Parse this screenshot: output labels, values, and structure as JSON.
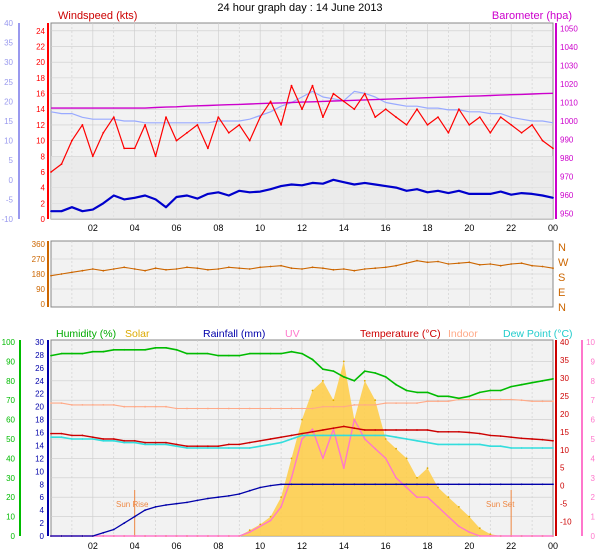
{
  "title": "24 hour graph day : 14 June 2013",
  "colors": {
    "wind_gust": "#ff0000",
    "wind_avg": "#0000cc",
    "wind_axis": "#ff0000",
    "wind_left_axis": "#9999ee",
    "barometer": "#cc00cc",
    "barometer_light": "#99aaff",
    "wind_dir": "#cc6600",
    "humidity": "#00bb00",
    "solar": "#ffcc44",
    "rainfall": "#0000aa",
    "uv": "#ff77cc",
    "temperature": "#cc0000",
    "indoor": "#ffaa88",
    "dewpoint": "#33dddd",
    "grid": "#cccccc",
    "panel_bg": "#f2f2f2"
  },
  "chart_data": [
    {
      "type": "line",
      "name": "wind-barometer",
      "title": "",
      "left_title": "Windspeed (kts)",
      "right_title": "Barometer (hpa)",
      "x_ticks": [
        "02",
        "04",
        "06",
        "08",
        "10",
        "12",
        "14",
        "16",
        "18",
        "20",
        "22",
        "00"
      ],
      "left_outer_ticks": [
        40,
        35,
        30,
        25,
        20,
        15,
        10,
        5,
        0,
        -5,
        -10
      ],
      "left_inner_ticks": [
        24,
        22,
        20,
        18,
        16,
        14,
        12,
        10,
        8,
        6,
        4,
        2,
        0
      ],
      "right_ticks": [
        1050,
        1040,
        1030,
        1020,
        1010,
        1000,
        990,
        980,
        970,
        960,
        950
      ],
      "ylim_wind": [
        0,
        25
      ],
      "ylim_baro": [
        947,
        1053
      ],
      "x_hours": [
        0,
        0.5,
        1,
        1.5,
        2,
        2.5,
        3,
        3.5,
        4,
        4.5,
        5,
        5.5,
        6,
        6.5,
        7,
        7.5,
        8,
        8.5,
        9,
        9.5,
        10,
        10.5,
        11,
        11.5,
        12,
        12.5,
        13,
        13.5,
        14,
        14.5,
        15,
        15.5,
        16,
        16.5,
        17,
        17.5,
        18,
        18.5,
        19,
        19.5,
        20,
        20.5,
        21,
        21.5,
        22,
        22.5,
        23,
        23.5,
        24
      ],
      "series": [
        {
          "name": "Wind gust",
          "values": [
            6,
            7,
            10,
            12,
            8,
            11,
            13,
            9,
            9,
            12,
            8,
            13,
            10,
            11,
            12,
            9,
            13,
            11,
            12,
            10,
            13,
            15,
            12,
            17,
            14,
            17,
            13,
            16,
            15,
            14,
            16,
            13,
            14,
            13,
            12,
            14,
            12,
            13,
            11,
            14,
            12,
            13,
            11,
            13,
            12,
            11,
            12,
            10,
            9
          ]
        },
        {
          "name": "Wind avg",
          "values": [
            1,
            1,
            1.5,
            1,
            1.2,
            2,
            3,
            2.5,
            2.7,
            3,
            2.5,
            1.5,
            2.8,
            3,
            2.6,
            3.2,
            3.4,
            3,
            3.6,
            3.4,
            3.5,
            3.8,
            4.2,
            4.4,
            4.3,
            4.6,
            4.5,
            5,
            4.7,
            4.4,
            4.6,
            4.4,
            4.2,
            4,
            3.6,
            3.8,
            3.4,
            3.6,
            3.3,
            3.6,
            3.2,
            3.2,
            3.2,
            3.5,
            3.1,
            3.3,
            3.2,
            3,
            2.7
          ]
        },
        {
          "name": "Barometer",
          "values": [
            1007,
            1007,
            1007,
            1007,
            1007,
            1007,
            1007,
            1007,
            1007,
            1007,
            1007.3,
            1007.5,
            1007.7,
            1008,
            1008.2,
            1008.4,
            1008.6,
            1008.8,
            1009,
            1009.2,
            1009.4,
            1009.6,
            1009.8,
            1010,
            1010.2,
            1010.4,
            1010.6,
            1010.8,
            1011,
            1011.2,
            1011.4,
            1011.6,
            1011.8,
            1012,
            1012.2,
            1012.4,
            1012.6,
            1012.8,
            1013,
            1013.2,
            1013.4,
            1013.6,
            1013.8,
            1014,
            1014.2,
            1014.4,
            1014.6,
            1014.8,
            1015
          ]
        },
        {
          "name": "Barometer light",
          "values": [
            1005,
            1004,
            1004,
            1002,
            1001,
            1001,
            1001,
            1000,
            1000,
            999,
            999,
            999,
            999,
            999,
            999,
            999,
            1000,
            1000,
            1000,
            1001,
            1003,
            1005,
            1008,
            1010,
            1013,
            1016,
            1013,
            1012,
            1011,
            1016,
            1015,
            1013,
            1010,
            1009,
            1008,
            1008,
            1007,
            1007,
            1006,
            1006,
            1005,
            1005,
            1004,
            1004,
            1002,
            1001,
            1000,
            1000,
            999
          ]
        }
      ]
    },
    {
      "type": "line",
      "name": "wind-direction",
      "title": "",
      "left_ticks": [
        360,
        270,
        180,
        90,
        0
      ],
      "right_labels": [
        "N",
        "W",
        "S",
        "E",
        "N"
      ],
      "ylim": [
        0,
        360
      ],
      "x_hours": [
        0,
        0.5,
        1,
        1.5,
        2,
        2.5,
        3,
        3.5,
        4,
        4.5,
        5,
        5.5,
        6,
        6.5,
        7,
        7.5,
        8,
        8.5,
        9,
        9.5,
        10,
        10.5,
        11,
        11.5,
        12,
        12.5,
        13,
        13.5,
        14,
        14.5,
        15,
        15.5,
        16,
        16.5,
        17,
        17.5,
        18,
        18.5,
        19,
        19.5,
        20,
        20.5,
        21,
        21.5,
        22,
        22.5,
        23,
        23.5,
        24
      ],
      "series": [
        {
          "name": "Wind direction",
          "values": [
            170,
            180,
            190,
            200,
            210,
            200,
            210,
            220,
            210,
            200,
            215,
            205,
            210,
            220,
            215,
            205,
            210,
            220,
            215,
            210,
            220,
            225,
            230,
            215,
            210,
            220,
            215,
            205,
            210,
            200,
            210,
            215,
            220,
            230,
            245,
            260,
            250,
            255,
            240,
            245,
            250,
            235,
            240,
            230,
            240,
            245,
            230,
            225,
            215
          ]
        }
      ]
    },
    {
      "type": "line",
      "name": "temperature-humidity",
      "title": "",
      "legend": {
        "humidity": "Humidity (%)",
        "solar": "Solar",
        "rainfall": "Rainfall (mm)",
        "uv": "UV",
        "temperature": "Temperature (°C)",
        "indoor": "Indoor",
        "dewpoint": "Dew Point (°C)"
      },
      "x_ticks": [
        "02",
        "04",
        "06",
        "08",
        "10",
        "12",
        "14",
        "16",
        "18",
        "20",
        "22",
        "00"
      ],
      "annotations": {
        "sunrise": "Sun Rise",
        "sunset": "Sun Set"
      },
      "humidity_ticks": [
        100,
        90,
        80,
        70,
        60,
        50,
        40,
        30,
        20,
        10,
        0
      ],
      "rain_ticks": [
        30,
        28,
        26,
        24,
        22,
        20,
        18,
        16,
        14,
        12,
        10,
        8,
        6,
        4,
        2,
        0
      ],
      "temp_ticks": [
        40,
        35,
        30,
        25,
        20,
        15,
        10,
        5,
        0,
        -5,
        -10
      ],
      "uv_ticks": [
        10,
        9,
        8,
        7,
        6,
        5,
        4,
        3,
        2,
        1,
        0
      ],
      "ylim_humidity": [
        0,
        100
      ],
      "ylim_rain": [
        0,
        30
      ],
      "ylim_temp": [
        -14,
        40
      ],
      "ylim_uv": [
        0,
        10
      ],
      "x_hours": [
        0,
        0.5,
        1,
        1.5,
        2,
        2.5,
        3,
        3.5,
        4,
        4.5,
        5,
        5.5,
        6,
        6.5,
        7,
        7.5,
        8,
        8.5,
        9,
        9.5,
        10,
        10.5,
        11,
        11.5,
        12,
        12.5,
        13,
        13.5,
        14,
        14.5,
        15,
        15.5,
        16,
        16.5,
        17,
        17.5,
        18,
        18.5,
        19,
        19.5,
        20,
        20.5,
        21,
        21.5,
        22,
        22.5,
        23,
        23.5,
        24
      ],
      "series": [
        {
          "name": "Humidity",
          "values": [
            93,
            94,
            94,
            94,
            95,
            95,
            96,
            96,
            96,
            96,
            97,
            97,
            96,
            94,
            94,
            94,
            93,
            93,
            93,
            94,
            94,
            94,
            94,
            95,
            94,
            91,
            86,
            85,
            82,
            80,
            85,
            84,
            82,
            78,
            75,
            74,
            74,
            72,
            72,
            71,
            72,
            74,
            75,
            75,
            77,
            78,
            79,
            80,
            81
          ]
        },
        {
          "name": "Temperature",
          "values": [
            14.5,
            14.5,
            14,
            14,
            13.5,
            13,
            13,
            12.5,
            12.5,
            12,
            12,
            12,
            11.5,
            11,
            11,
            11,
            11,
            11.5,
            11.5,
            12,
            12.5,
            13,
            13.5,
            14,
            14.5,
            15,
            15.5,
            16,
            16.5,
            16,
            15.5,
            15.5,
            15.5,
            15.5,
            15.5,
            15.5,
            15.5,
            15,
            15,
            15,
            14.8,
            14.5,
            14,
            13.8,
            13.5,
            13.2,
            13,
            12.8,
            12.5
          ]
        },
        {
          "name": "Indoor",
          "values": [
            23,
            23,
            22.5,
            22.5,
            22.5,
            22.5,
            22.5,
            22,
            22,
            22,
            22,
            22,
            21.5,
            21.5,
            21.5,
            21.5,
            21.5,
            21.5,
            21.5,
            21.5,
            21.5,
            21.5,
            21.5,
            21.5,
            21.5,
            21.5,
            22,
            22,
            22,
            22.5,
            22.5,
            22.5,
            23,
            23,
            23,
            23,
            23.5,
            23.5,
            23.5,
            24,
            24,
            24,
            24,
            24,
            24,
            23.8,
            23.5,
            23.5,
            23.5
          ]
        },
        {
          "name": "Dew Point",
          "values": [
            13.5,
            13.5,
            13,
            13,
            13,
            12.5,
            12.5,
            12,
            12,
            11.5,
            11.5,
            11.5,
            11,
            10.5,
            10.5,
            10.5,
            10.5,
            10.5,
            10.5,
            10.5,
            11,
            11.5,
            12,
            13,
            14,
            14,
            14,
            14,
            14,
            14,
            14,
            14,
            14,
            13.5,
            13,
            12.5,
            12,
            11.5,
            11.5,
            11.5,
            11.5,
            11.5,
            11,
            11,
            10.5,
            10.5,
            10.5,
            10.5,
            10.5
          ]
        },
        {
          "name": "Rainfall",
          "values": [
            0,
            0,
            0,
            0,
            0,
            0.5,
            1,
            2,
            3,
            4,
            4.5,
            4.8,
            5,
            5.2,
            5.5,
            5.8,
            6,
            6.2,
            6.5,
            7,
            7.5,
            7.8,
            8,
            8,
            8,
            8,
            8,
            8,
            8,
            8,
            8,
            8,
            8,
            8,
            8,
            8,
            8,
            8,
            8,
            8,
            8,
            8,
            8,
            8,
            8,
            8,
            8,
            8,
            8
          ]
        },
        {
          "name": "Solar",
          "values": [
            0,
            0,
            0,
            0,
            0,
            0,
            0,
            0,
            0,
            0,
            0,
            0,
            0,
            0,
            0,
            0,
            0,
            0,
            0,
            0.3,
            0.6,
            1,
            2,
            4,
            6,
            7.5,
            8,
            7,
            9,
            6,
            8,
            7,
            5,
            4.5,
            4,
            3,
            3.5,
            2.5,
            2,
            1.5,
            1,
            0.4,
            0.1,
            0,
            0,
            0,
            0,
            0,
            0
          ]
        },
        {
          "name": "UV",
          "values": [
            0,
            0,
            0,
            0,
            0,
            0,
            0,
            0,
            0,
            0,
            0,
            0,
            0,
            0,
            0,
            0,
            0,
            0,
            0,
            0.2,
            0.5,
            0.8,
            1.5,
            3,
            5,
            5.5,
            4,
            5.5,
            3.5,
            6,
            5,
            4.5,
            4,
            3,
            2.5,
            2,
            2,
            1.5,
            1,
            0.5,
            0.2,
            0,
            0,
            0,
            0,
            0,
            0,
            0,
            0
          ]
        }
      ]
    }
  ]
}
